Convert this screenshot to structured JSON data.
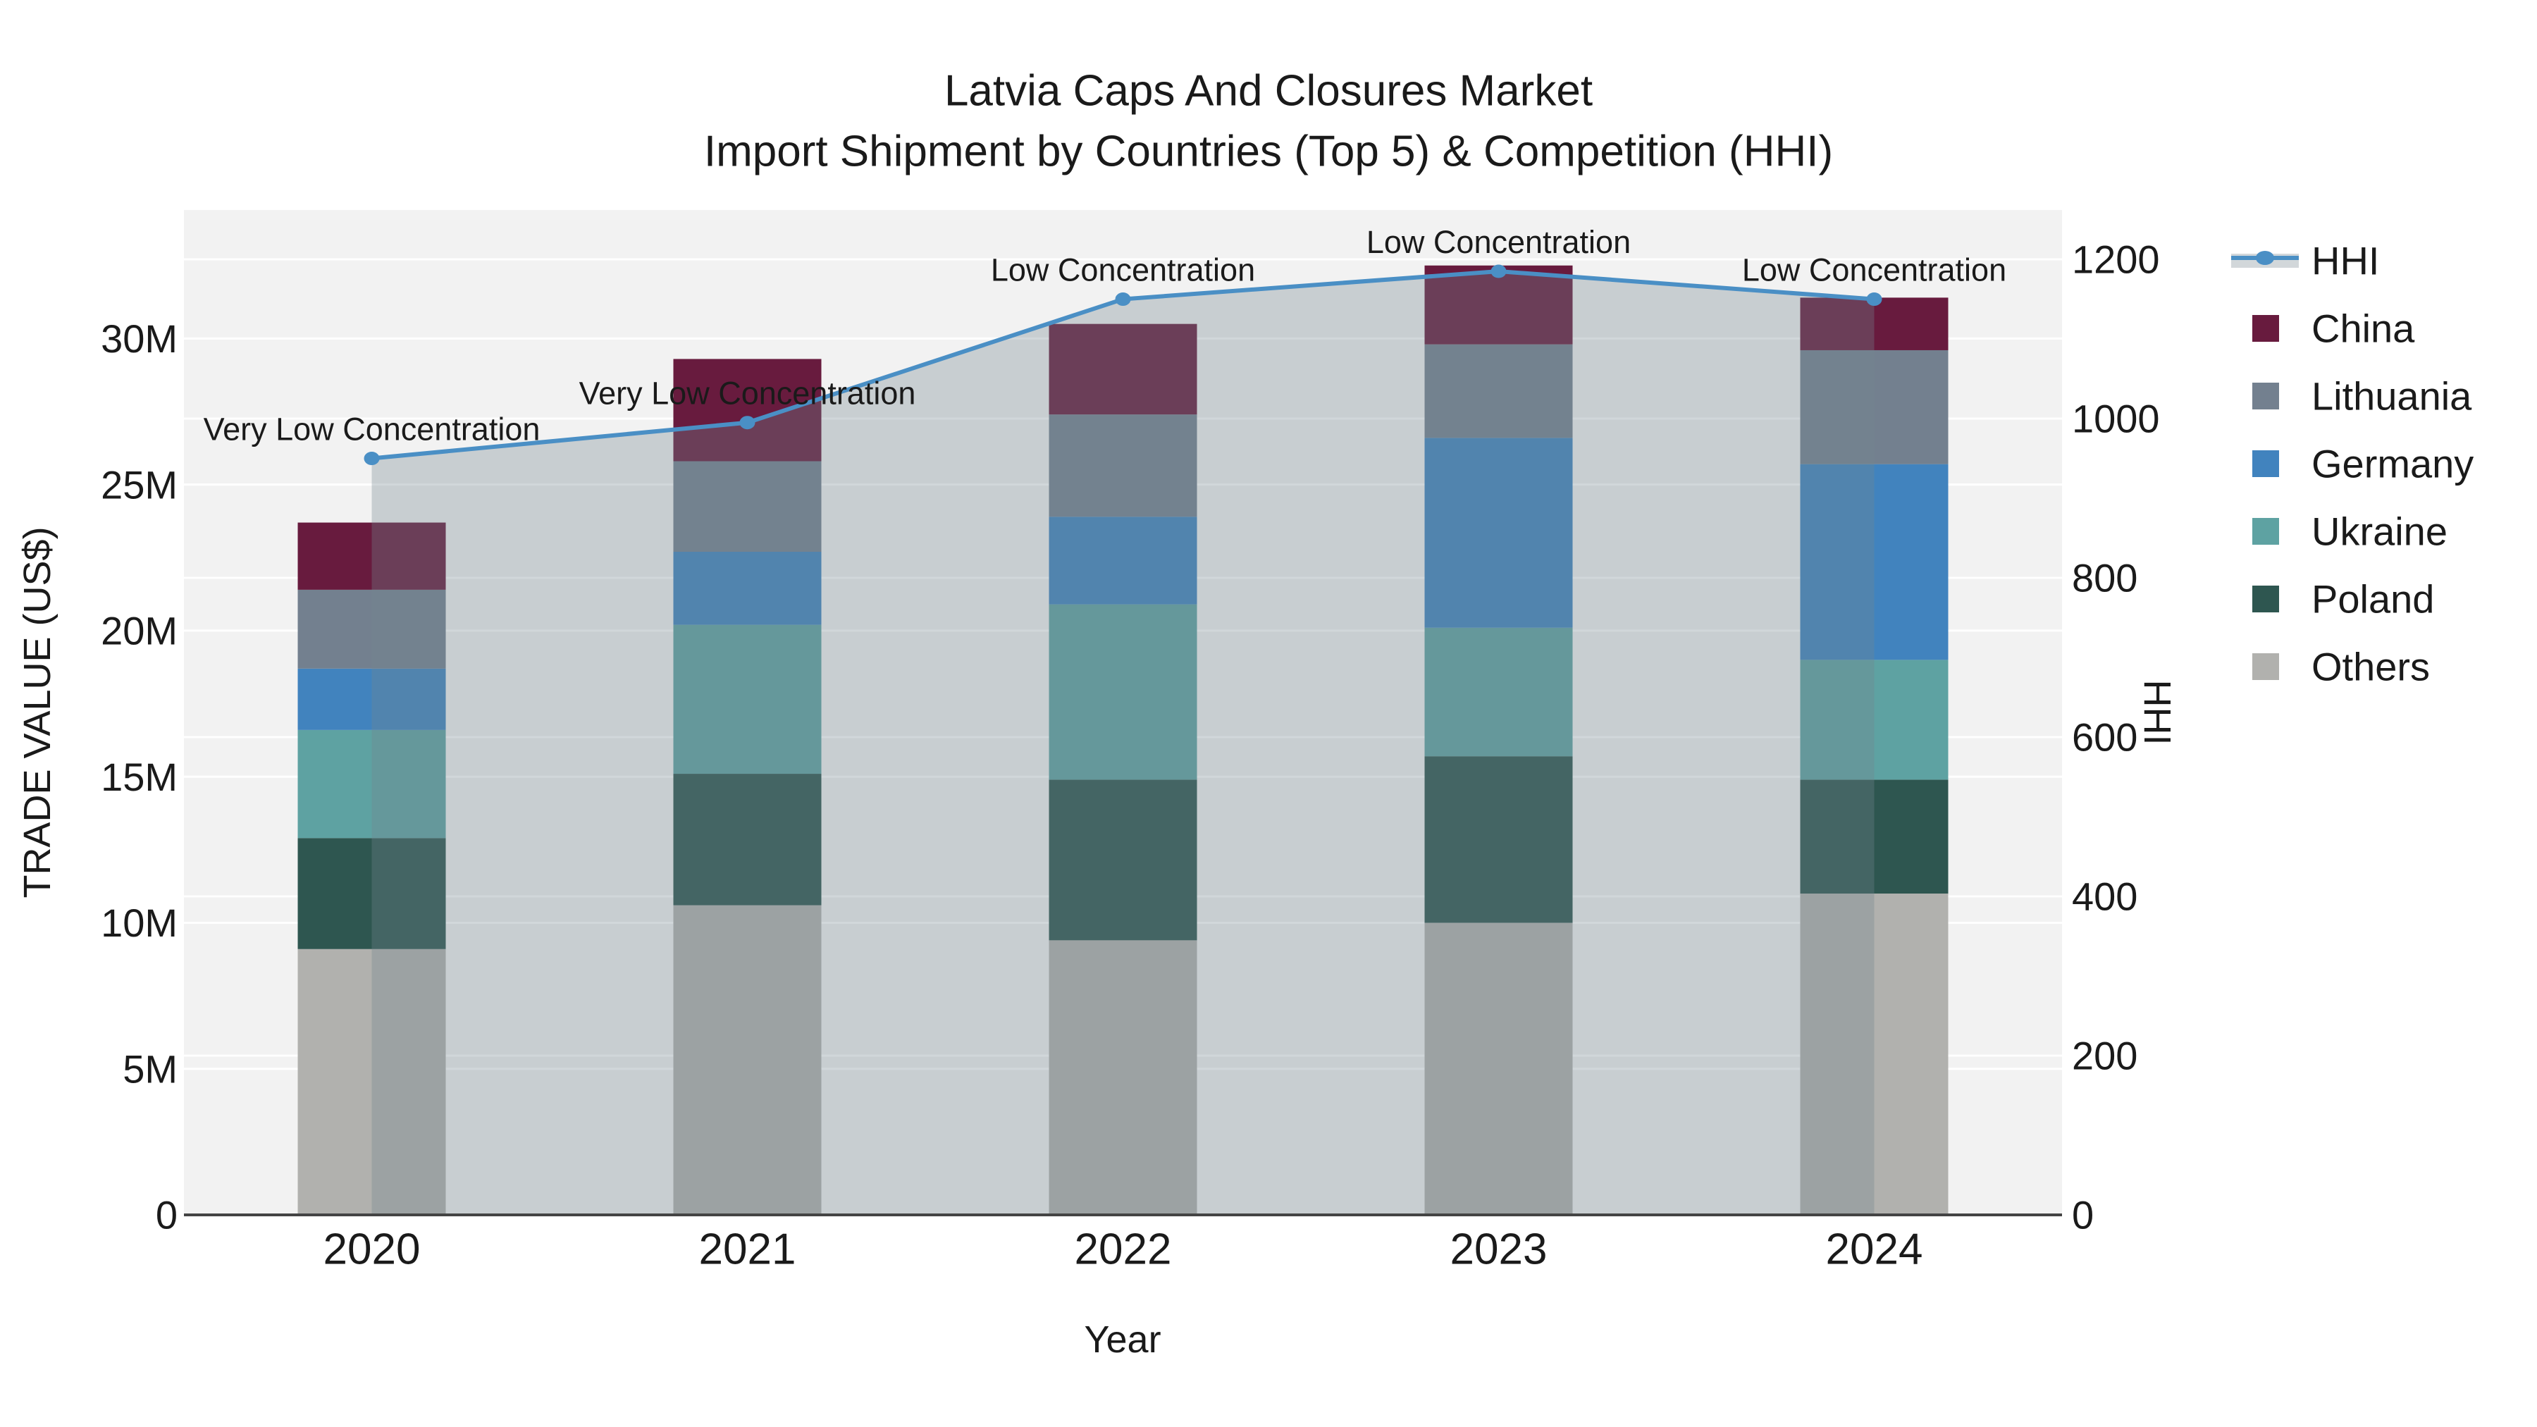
{
  "title": {
    "line1": "Latvia Caps And Closures Market",
    "line2": "Import Shipment by Countries (Top 5) & Competition (HHI)"
  },
  "chart_data": {
    "type": "bar+line",
    "stacked": true,
    "categories": [
      "2020",
      "2021",
      "2022",
      "2023",
      "2024"
    ],
    "bar_value_unit": "million US$",
    "series": [
      {
        "name": "Others",
        "color": "#B1B1AE",
        "values_musd": [
          9.1,
          10.6,
          9.4,
          10.0,
          11.0
        ]
      },
      {
        "name": "Poland",
        "color": "#2E5650",
        "values_musd": [
          3.8,
          4.5,
          5.5,
          5.7,
          3.9
        ]
      },
      {
        "name": "Ukraine",
        "color": "#5EA2A2",
        "values_musd": [
          3.7,
          5.1,
          6.0,
          4.4,
          4.1
        ]
      },
      {
        "name": "Germany",
        "color": "#4183BE",
        "values_musd": [
          2.1,
          2.5,
          3.0,
          6.5,
          6.7
        ]
      },
      {
        "name": "Lithuania",
        "color": "#73808F",
        "values_musd": [
          2.7,
          3.1,
          3.5,
          3.2,
          3.9
        ]
      },
      {
        "name": "China",
        "color": "#681B3E",
        "values_musd": [
          2.3,
          3.5,
          3.1,
          2.7,
          1.8
        ]
      }
    ],
    "totals_musd": [
      23.7,
      29.3,
      30.5,
      32.5,
      31.4
    ],
    "line_series": {
      "name": "HHI",
      "color": "#4A8FC5",
      "area_fill_color": "rgba(116,134,142,0.33)",
      "values": [
        950,
        995,
        1150,
        1185,
        1150
      ]
    },
    "annotations": [
      "Very Low Concentration",
      "Very Low Concentration",
      "Low Concentration",
      "Low Concentration",
      "Low Concentration"
    ],
    "left_axis": {
      "label": "TRADE VALUE (US$)",
      "ticks": [
        "0",
        "5M",
        "10M",
        "15M",
        "20M",
        "25M",
        "30M"
      ],
      "tick_values_musd": [
        0,
        5,
        10,
        15,
        20,
        25,
        30
      ],
      "range_musd": [
        0,
        34.4
      ],
      "grid": true
    },
    "right_axis": {
      "label": "HHI",
      "ticks": [
        "0",
        "200",
        "400",
        "600",
        "800",
        "1000",
        "1200"
      ],
      "tick_values": [
        0,
        200,
        400,
        600,
        800,
        1000,
        1200
      ],
      "range": [
        0,
        1262
      ],
      "grid": true
    },
    "x_axis": {
      "label": "Year"
    },
    "legend": {
      "position": "right",
      "items": [
        {
          "label": "HHI",
          "type": "line",
          "color": "#4A8FC5",
          "band_color": "#D2D7DA"
        },
        {
          "label": "China",
          "type": "swatch",
          "color": "#681B3E"
        },
        {
          "label": "Lithuania",
          "type": "swatch",
          "color": "#73808F"
        },
        {
          "label": "Germany",
          "type": "swatch",
          "color": "#4183BE"
        },
        {
          "label": "Ukraine",
          "type": "swatch",
          "color": "#5EA2A2"
        },
        {
          "label": "Poland",
          "type": "swatch",
          "color": "#2E5650"
        },
        {
          "label": "Others",
          "type": "swatch",
          "color": "#B1B1AE"
        }
      ]
    },
    "plot_background": "#F2F2F2",
    "gridline_color": "#FFFFFF",
    "axis_line_color": "#444444"
  }
}
